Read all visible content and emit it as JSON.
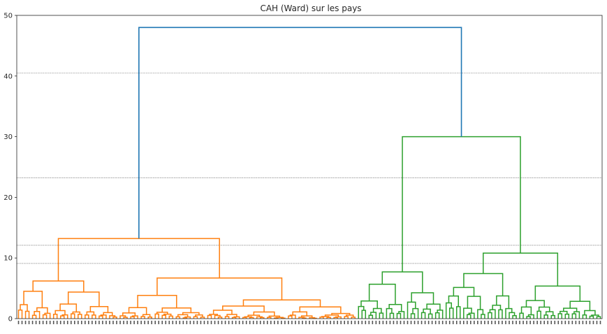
{
  "chart_data": {
    "type": "dendrogram",
    "title": "CAH (Ward) sur les pays",
    "xlabel": "",
    "ylabel": "",
    "ylim": [
      0,
      50
    ],
    "yticks": [
      0,
      10,
      20,
      30,
      40,
      50
    ],
    "threshold_lines": [
      9.1,
      12.1,
      23.2,
      40.5
    ],
    "grid": false,
    "leaf_count": 167,
    "clusters": [
      {
        "color": "#ff7f0e",
        "leaf_count": 97,
        "merge_height": 13.2
      },
      {
        "color": "#2ca02c",
        "leaf_count": 70,
        "merge_height": 30.0
      }
    ],
    "main_subclusters": [
      {
        "cluster": 0,
        "leaf_count": 29,
        "merge_height": 6.2
      },
      {
        "cluster": 0,
        "leaf_count": 68,
        "merge_height": 6.7
      },
      {
        "cluster": 1,
        "leaf_count": 25,
        "merge_height": 7.7
      },
      {
        "cluster": 1,
        "leaf_count": 45,
        "merge_height": 10.8
      }
    ],
    "root_merge_height": 48.0,
    "root_color": "#1f77b4"
  }
}
